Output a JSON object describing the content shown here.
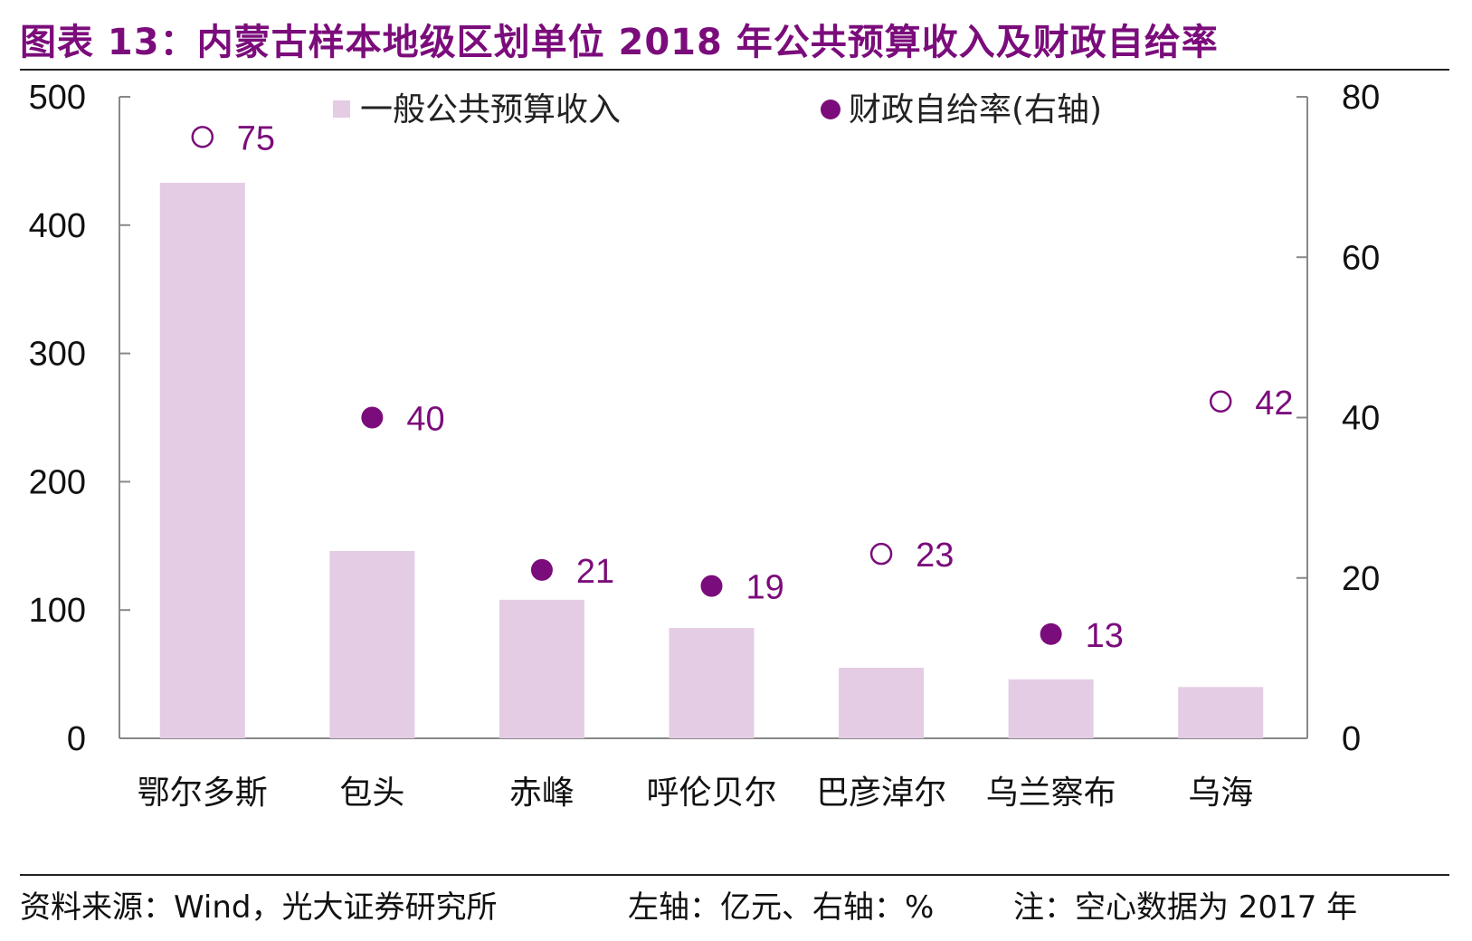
{
  "title": "图表 13：内蒙古样本地级区划单位 2018 年公共预算收入及财政自给率",
  "footer": {
    "source": "资料来源：Wind，光大证券研究所",
    "axis_note": "左轴：亿元、右轴：%",
    "note": "注：空心数据为 2017 年"
  },
  "colors": {
    "bar": "#E4CCE4",
    "dot": "#7B0C7B",
    "title": "#7B0C7B"
  },
  "chart_data": {
    "type": "bar",
    "categories": [
      "鄂尔多斯",
      "包头",
      "赤峰",
      "呼伦贝尔",
      "巴彦淖尔",
      "乌兰察布",
      "乌海"
    ],
    "series": [
      {
        "name": "一般公共预算收入",
        "axis": "left",
        "type": "bar",
        "values": [
          433,
          146,
          108,
          86,
          55,
          46,
          40
        ]
      },
      {
        "name": "财政自给率(右轴)",
        "axis": "right",
        "type": "scatter",
        "values": [
          75,
          40,
          21,
          19,
          23,
          13,
          42
        ],
        "hollow": [
          true,
          false,
          false,
          false,
          true,
          false,
          true
        ]
      }
    ],
    "y_left": {
      "min": 0,
      "max": 500,
      "ticks": [
        0,
        100,
        200,
        300,
        400,
        500
      ]
    },
    "y_right": {
      "min": 0,
      "max": 80,
      "ticks": [
        0,
        20,
        40,
        60,
        80
      ]
    },
    "legend": {
      "placement": "top"
    },
    "grid": false
  }
}
